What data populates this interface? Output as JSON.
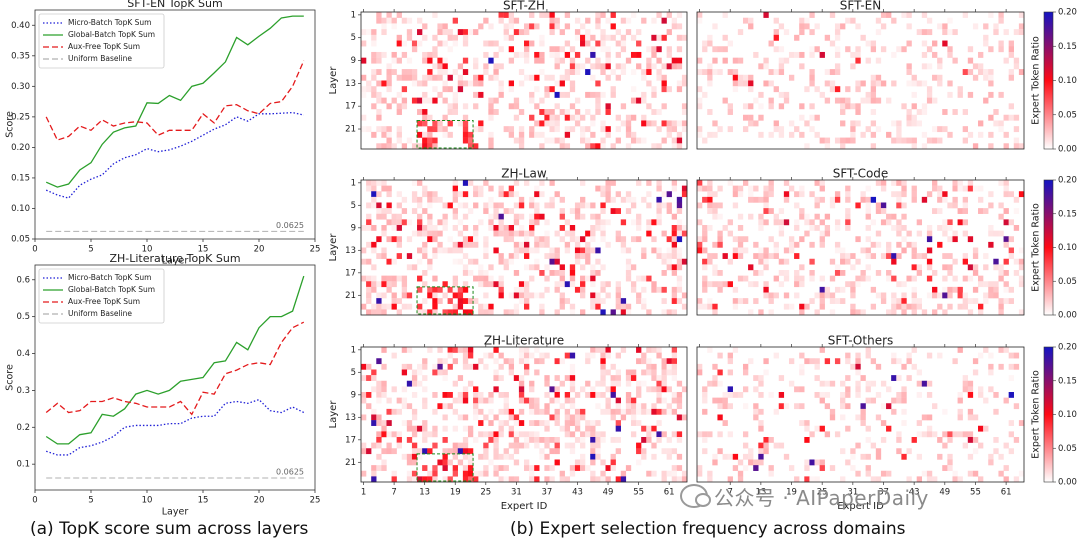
{
  "chart_data": [
    {
      "type": "line",
      "title": "SFT-EN TopK Sum",
      "xlabel": "Layer",
      "ylabel": "Score",
      "ylim": [
        0.05,
        0.425
      ],
      "xlim": [
        0,
        25
      ],
      "xticks": [
        "0",
        "5",
        "10",
        "15",
        "20",
        "25"
      ],
      "yticks": [
        "0.05",
        "0.10",
        "0.15",
        "0.20",
        "0.25",
        "0.30",
        "0.35",
        "0.40"
      ],
      "legend": "top-left",
      "annotation": "0.0625",
      "x": [
        1,
        2,
        3,
        4,
        5,
        6,
        7,
        8,
        9,
        10,
        11,
        12,
        13,
        14,
        15,
        16,
        17,
        18,
        19,
        20,
        21,
        22,
        23,
        24
      ],
      "series": [
        {
          "name": "Micro-Batch TopK Sum",
          "color": "#1f1fd6",
          "dash": "dotted",
          "values": [
            0.13,
            0.122,
            0.117,
            0.138,
            0.148,
            0.155,
            0.173,
            0.183,
            0.188,
            0.198,
            0.193,
            0.196,
            0.202,
            0.21,
            0.22,
            0.23,
            0.237,
            0.25,
            0.243,
            0.255,
            0.255,
            0.256,
            0.257,
            0.253
          ]
        },
        {
          "name": "Global-Batch TopK Sum",
          "color": "#2ca02c",
          "dash": "solid",
          "values": [
            0.143,
            0.135,
            0.14,
            0.163,
            0.175,
            0.205,
            0.225,
            0.232,
            0.235,
            0.273,
            0.272,
            0.285,
            0.277,
            0.3,
            0.305,
            0.322,
            0.34,
            0.38,
            0.368,
            0.382,
            0.395,
            0.412,
            0.415,
            0.415
          ]
        },
        {
          "name": "Aux-Free TopK Sum",
          "color": "#e41a1c",
          "dash": "dashed",
          "values": [
            0.25,
            0.212,
            0.218,
            0.235,
            0.228,
            0.245,
            0.235,
            0.24,
            0.242,
            0.24,
            0.22,
            0.228,
            0.228,
            0.228,
            0.255,
            0.24,
            0.268,
            0.27,
            0.26,
            0.255,
            0.272,
            0.275,
            0.3,
            0.342
          ]
        },
        {
          "name": "Uniform Baseline",
          "color": "#b0b0b0",
          "dash": "dashed",
          "values": [
            0.0625,
            0.0625,
            0.0625,
            0.0625,
            0.0625,
            0.0625,
            0.0625,
            0.0625,
            0.0625,
            0.0625,
            0.0625,
            0.0625,
            0.0625,
            0.0625,
            0.0625,
            0.0625,
            0.0625,
            0.0625,
            0.0625,
            0.0625,
            0.0625,
            0.0625,
            0.0625,
            0.0625
          ]
        }
      ]
    },
    {
      "type": "line",
      "title": "ZH-Literature TopK Sum",
      "xlabel": "Layer",
      "ylabel": "Score",
      "ylim": [
        0.03,
        0.64
      ],
      "xlim": [
        0,
        25
      ],
      "xticks": [
        "0",
        "5",
        "10",
        "15",
        "20",
        "25"
      ],
      "yticks": [
        "0.1",
        "0.2",
        "0.3",
        "0.4",
        "0.5",
        "0.6"
      ],
      "legend": "top-left",
      "annotation": "0.0625",
      "x": [
        1,
        2,
        3,
        4,
        5,
        6,
        7,
        8,
        9,
        10,
        11,
        12,
        13,
        14,
        15,
        16,
        17,
        18,
        19,
        20,
        21,
        22,
        23,
        24
      ],
      "series": [
        {
          "name": "Micro-Batch TopK Sum",
          "color": "#1f1fd6",
          "dash": "dotted",
          "values": [
            0.135,
            0.125,
            0.125,
            0.145,
            0.15,
            0.16,
            0.175,
            0.2,
            0.205,
            0.205,
            0.205,
            0.21,
            0.21,
            0.225,
            0.23,
            0.23,
            0.265,
            0.27,
            0.265,
            0.275,
            0.245,
            0.24,
            0.255,
            0.24
          ]
        },
        {
          "name": "Global-Batch TopK Sum",
          "color": "#2ca02c",
          "dash": "solid",
          "values": [
            0.175,
            0.155,
            0.155,
            0.18,
            0.185,
            0.235,
            0.23,
            0.25,
            0.29,
            0.3,
            0.29,
            0.3,
            0.325,
            0.33,
            0.335,
            0.375,
            0.38,
            0.43,
            0.41,
            0.47,
            0.5,
            0.5,
            0.515,
            0.61
          ]
        },
        {
          "name": "Aux-Free TopK Sum",
          "color": "#e41a1c",
          "dash": "dashed",
          "values": [
            0.24,
            0.265,
            0.24,
            0.245,
            0.27,
            0.27,
            0.28,
            0.27,
            0.265,
            0.255,
            0.255,
            0.255,
            0.27,
            0.235,
            0.295,
            0.29,
            0.345,
            0.355,
            0.37,
            0.375,
            0.37,
            0.43,
            0.47,
            0.485
          ]
        },
        {
          "name": "Uniform Baseline",
          "color": "#b0b0b0",
          "dash": "dashed",
          "values": [
            0.0625,
            0.0625,
            0.0625,
            0.0625,
            0.0625,
            0.0625,
            0.0625,
            0.0625,
            0.0625,
            0.0625,
            0.0625,
            0.0625,
            0.0625,
            0.0625,
            0.0625,
            0.0625,
            0.0625,
            0.0625,
            0.0625,
            0.0625,
            0.0625,
            0.0625,
            0.0625,
            0.0625
          ]
        }
      ]
    },
    {
      "type": "heatmap",
      "panels": [
        "SFT-ZH",
        "SFT-EN",
        "ZH-Law",
        "SFT-Code",
        "ZH-Literature",
        "SFT-Others"
      ],
      "ylabel": "Layer",
      "xlabel": "Expert ID",
      "rows": 24,
      "cols": 64,
      "yticks": [
        "1",
        "5",
        "9",
        "13",
        "17",
        "21"
      ],
      "xticks_left": [
        "1",
        "7",
        "13",
        "19",
        "25",
        "31",
        "37",
        "43",
        "49",
        "55",
        "61"
      ],
      "xticks_right": [
        "7",
        "13",
        "19",
        "25",
        "31",
        "37",
        "43",
        "49",
        "55",
        "61"
      ],
      "colorbar_label": "Expert Token Ratio",
      "colorbar_ticks": [
        "0.00",
        "0.05",
        "0.10",
        "0.15",
        "0.20"
      ],
      "vmax": 0.2,
      "highlight": "Layers 20-24, Experts 12-22 (ZH panels)"
    }
  ],
  "captions": {
    "a": "(a) TopK score sum across layers",
    "b": "(b) Expert selection frequency across domains"
  },
  "watermark": "公众号 · AIPaperDaily"
}
